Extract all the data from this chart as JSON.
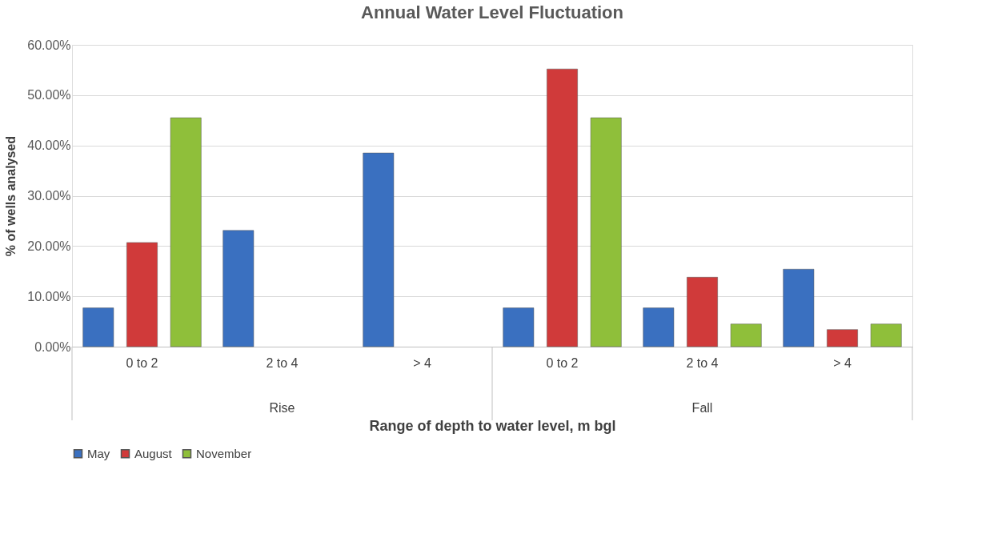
{
  "chart_data": {
    "type": "bar",
    "title": "Annual Water Level Fluctuation",
    "xlabel": "Range of depth to water level, m bgl",
    "ylabel": "% of wells analysed",
    "categories": [
      "0 to 2",
      "2 to 4",
      "> 4",
      "0 to 2",
      "2 to 4",
      "> 4"
    ],
    "annotations": [
      "Rise",
      "Fall"
    ],
    "series": [
      {
        "name": "May",
        "color": "#3a70c0",
        "values": [
          7.7,
          23.1,
          38.5,
          7.7,
          7.7,
          15.4
        ]
      },
      {
        "name": "August",
        "color": "#d03a3a",
        "values": [
          20.7,
          null,
          null,
          55.2,
          13.8,
          3.4
        ]
      },
      {
        "name": "November",
        "color": "#8fbf3a",
        "values": [
          45.5,
          null,
          null,
          45.5,
          4.5,
          4.5
        ]
      }
    ],
    "ylim": [
      0,
      60
    ],
    "yticks": [
      {
        "value": 0,
        "label": "0.00%"
      },
      {
        "value": 10,
        "label": "10.00%"
      },
      {
        "value": 20,
        "label": "20.00%"
      },
      {
        "value": 30,
        "label": "30.00%"
      },
      {
        "value": 40,
        "label": "40.00%"
      },
      {
        "value": 50,
        "label": "50.00%"
      },
      {
        "value": 60,
        "label": "60.00%"
      }
    ],
    "grid": "y",
    "legend": "bottom"
  }
}
